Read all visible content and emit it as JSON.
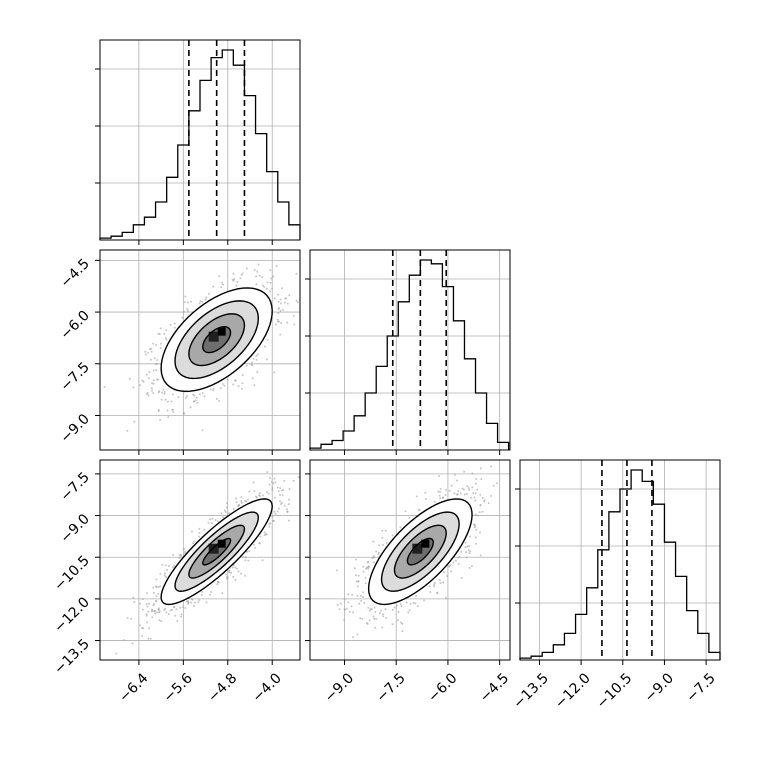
{
  "chart_data": {
    "type": "corner",
    "title": "",
    "xlabel": "",
    "ylabel": "",
    "params": [
      {
        "mean": -5.0,
        "sd": 0.5,
        "range": [
          -7.1,
          -3.5
        ],
        "ticks": [
          -6.4,
          -5.6,
          -4.8,
          -4.0
        ],
        "tick_labels": [
          "−6.4",
          "−5.6",
          "−4.8",
          "−4.0"
        ],
        "quantiles": [
          -5.5,
          -5.0,
          -4.5
        ],
        "hist_edges": [
          -7.1,
          -6.9,
          -6.7,
          -6.5,
          -6.3,
          -6.1,
          -5.9,
          -5.7,
          -5.5,
          -5.3,
          -5.1,
          -4.9,
          -4.7,
          -4.5,
          -4.3,
          -4.1,
          -3.9,
          -3.7,
          -3.5
        ],
        "hist_counts": [
          0.01,
          0.02,
          0.04,
          0.08,
          0.12,
          0.2,
          0.33,
          0.5,
          0.68,
          0.84,
          0.96,
          1.0,
          0.92,
          0.76,
          0.56,
          0.36,
          0.2,
          0.08
        ]
      },
      {
        "mean": -6.8,
        "sd": 0.75,
        "range": [
          -10.0,
          -4.2
        ],
        "ticks": [
          -9.0,
          -7.5,
          -6.0,
          -4.5
        ],
        "tick_labels": [
          "−9.0",
          "−7.5",
          "−6.0",
          "−4.5"
        ],
        "quantiles": [
          -7.6,
          -6.8,
          -6.05
        ],
        "hist_edges": [
          -10.0,
          -9.68,
          -9.36,
          -9.04,
          -8.72,
          -8.4,
          -8.08,
          -7.76,
          -7.44,
          -7.12,
          -6.8,
          -6.48,
          -6.16,
          -5.84,
          -5.52,
          -5.2,
          -4.88,
          -4.56,
          -4.24
        ],
        "hist_counts": [
          0.01,
          0.03,
          0.05,
          0.1,
          0.18,
          0.3,
          0.44,
          0.6,
          0.78,
          0.92,
          1.0,
          0.98,
          0.86,
          0.68,
          0.48,
          0.3,
          0.14,
          0.04
        ]
      },
      {
        "mean": -10.3,
        "sd": 0.95,
        "range": [
          -14.2,
          -7.0
        ],
        "ticks": [
          -13.5,
          -12.0,
          -10.5,
          -9.0,
          -7.5
        ],
        "tick_labels": [
          "−13.5",
          "−12.0",
          "−10.5",
          "−9.0",
          "−7.5"
        ],
        "quantiles": [
          -11.25,
          -10.35,
          -9.45
        ],
        "hist_edges": [
          -14.2,
          -13.8,
          -13.4,
          -13.0,
          -12.6,
          -12.2,
          -11.8,
          -11.4,
          -11.0,
          -10.6,
          -10.2,
          -9.8,
          -9.4,
          -9.0,
          -8.6,
          -8.2,
          -7.8,
          -7.4,
          -7.0
        ],
        "hist_counts": [
          0.01,
          0.02,
          0.04,
          0.08,
          0.14,
          0.24,
          0.38,
          0.58,
          0.78,
          0.9,
          1.0,
          0.94,
          0.82,
          0.62,
          0.44,
          0.26,
          0.14,
          0.04
        ]
      }
    ],
    "correlations": [
      {
        "pair": [
          0,
          1
        ],
        "rho": 0.55
      },
      {
        "pair": [
          0,
          2
        ],
        "rho": 0.86
      },
      {
        "pair": [
          1,
          2
        ],
        "rho": 0.7
      }
    ],
    "histogram_style": "step",
    "quantile_line_style": "dashed",
    "contour_levels_sigma": [
      0.5,
      1.0,
      1.5,
      2.0
    ],
    "samples_shown": 2000,
    "grid": true,
    "colors": {
      "line": "#000000",
      "points": "#a0a0a0",
      "grid": "#b0b0b0"
    }
  }
}
